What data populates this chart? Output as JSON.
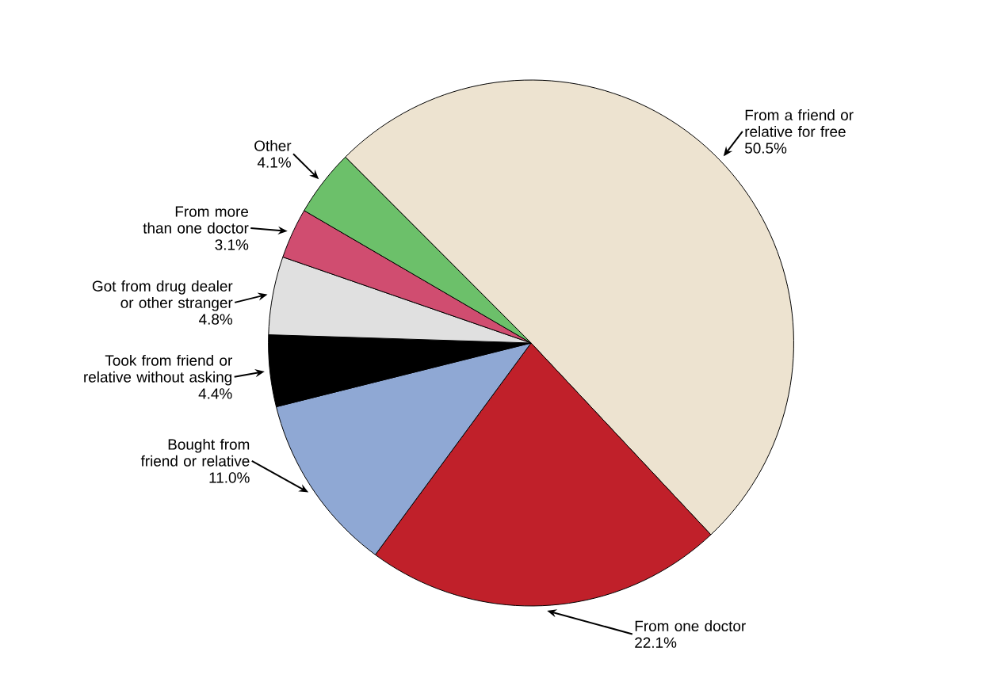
{
  "chart_data": {
    "type": "pie",
    "categories": [
      "From a friend or relative for free",
      "From one doctor",
      "Bought from friend or relative",
      "Took from friend or relative without asking",
      "Got from drug dealer or other stranger",
      "From more than one doctor",
      "Other"
    ],
    "values": [
      50.5,
      22.1,
      11.0,
      4.4,
      4.8,
      3.1,
      4.1
    ],
    "colors": [
      "#ede3d0",
      "#c0202a",
      "#8fa8d4",
      "#000000",
      "#e0e0e0",
      "#d04d70",
      "#6cc06a"
    ],
    "value_labels": [
      "50.5%",
      "22.1%",
      "11.0%",
      "4.4%",
      "4.8%",
      "3.1%",
      "4.1%"
    ]
  }
}
